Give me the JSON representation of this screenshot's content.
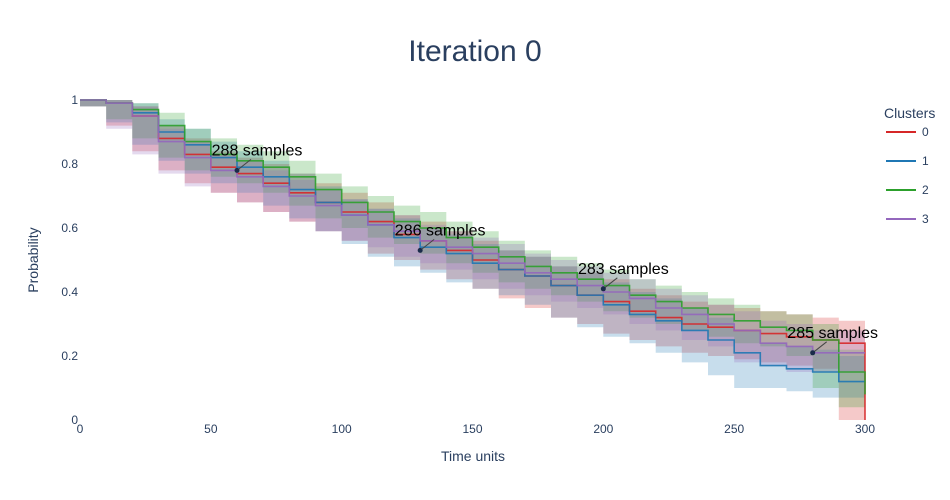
{
  "chart_data": {
    "type": "line",
    "title": "Iteration 0",
    "xlabel": "Time units",
    "ylabel": "Probability",
    "xlim": [
      0,
      300
    ],
    "ylim": [
      0,
      1
    ],
    "x_ticks": [
      0,
      50,
      100,
      150,
      200,
      250,
      300
    ],
    "y_ticks": [
      0,
      0.2,
      0.4,
      0.6,
      0.8,
      1
    ],
    "y_tick_labels": [
      "0",
      "0.2",
      "0.4",
      "0.6",
      "0.8",
      "1"
    ],
    "grid": false,
    "legend": {
      "title": "Clusters",
      "placement": "right"
    },
    "series": [
      {
        "name": "0",
        "color": "#d62728",
        "x": [
          0,
          10,
          20,
          30,
          40,
          50,
          60,
          70,
          80,
          90,
          100,
          110,
          120,
          130,
          140,
          150,
          160,
          170,
          180,
          190,
          200,
          210,
          220,
          230,
          240,
          250,
          260,
          270,
          280,
          290,
          300
        ],
        "y": [
          1.0,
          0.99,
          0.95,
          0.88,
          0.83,
          0.79,
          0.77,
          0.74,
          0.71,
          0.68,
          0.65,
          0.62,
          0.58,
          0.56,
          0.53,
          0.5,
          0.47,
          0.45,
          0.42,
          0.39,
          0.37,
          0.34,
          0.32,
          0.3,
          0.29,
          0.28,
          0.27,
          0.26,
          0.25,
          0.24,
          0.0
        ],
        "lower": [
          1.0,
          0.98,
          0.92,
          0.84,
          0.78,
          0.74,
          0.71,
          0.68,
          0.65,
          0.62,
          0.59,
          0.56,
          0.52,
          0.5,
          0.47,
          0.44,
          0.41,
          0.38,
          0.35,
          0.32,
          0.3,
          0.27,
          0.25,
          0.23,
          0.21,
          0.2,
          0.19,
          0.18,
          0.17,
          0.16,
          0.0
        ],
        "upper": [
          1.0,
          1.0,
          0.98,
          0.92,
          0.88,
          0.84,
          0.82,
          0.8,
          0.77,
          0.74,
          0.71,
          0.68,
          0.64,
          0.62,
          0.59,
          0.56,
          0.53,
          0.51,
          0.48,
          0.46,
          0.44,
          0.41,
          0.39,
          0.37,
          0.36,
          0.35,
          0.34,
          0.33,
          0.32,
          0.31,
          0.3
        ]
      },
      {
        "name": "1",
        "color": "#1f77b4",
        "x": [
          0,
          10,
          20,
          30,
          40,
          50,
          60,
          70,
          80,
          90,
          100,
          110,
          120,
          130,
          140,
          150,
          160,
          170,
          180,
          190,
          200,
          210,
          220,
          230,
          240,
          250,
          260,
          270,
          280,
          290,
          300
        ],
        "y": [
          1.0,
          0.99,
          0.96,
          0.9,
          0.86,
          0.82,
          0.79,
          0.76,
          0.72,
          0.68,
          0.64,
          0.61,
          0.57,
          0.54,
          0.52,
          0.49,
          0.47,
          0.45,
          0.42,
          0.39,
          0.36,
          0.33,
          0.31,
          0.28,
          0.25,
          0.21,
          0.17,
          0.16,
          0.15,
          0.12,
          0.12
        ],
        "lower": [
          1.0,
          0.98,
          0.93,
          0.86,
          0.81,
          0.77,
          0.74,
          0.71,
          0.67,
          0.63,
          0.59,
          0.55,
          0.51,
          0.48,
          0.46,
          0.43,
          0.41,
          0.39,
          0.36,
          0.32,
          0.29,
          0.26,
          0.24,
          0.21,
          0.18,
          0.14,
          0.1,
          0.1,
          0.09,
          0.07,
          0.07
        ],
        "upper": [
          1.0,
          1.0,
          0.99,
          0.94,
          0.91,
          0.87,
          0.84,
          0.81,
          0.77,
          0.73,
          0.69,
          0.66,
          0.63,
          0.6,
          0.58,
          0.55,
          0.53,
          0.51,
          0.48,
          0.46,
          0.43,
          0.4,
          0.38,
          0.35,
          0.32,
          0.28,
          0.24,
          0.23,
          0.22,
          0.2,
          0.2
        ]
      },
      {
        "name": "2",
        "color": "#2ca02c",
        "x": [
          0,
          10,
          20,
          30,
          40,
          50,
          60,
          70,
          80,
          90,
          100,
          110,
          120,
          130,
          140,
          150,
          160,
          170,
          180,
          190,
          200,
          210,
          220,
          230,
          240,
          250,
          260,
          270,
          280,
          290,
          300
        ],
        "y": [
          1.0,
          0.99,
          0.97,
          0.92,
          0.87,
          0.83,
          0.81,
          0.79,
          0.76,
          0.72,
          0.68,
          0.65,
          0.62,
          0.6,
          0.57,
          0.54,
          0.51,
          0.48,
          0.46,
          0.44,
          0.42,
          0.39,
          0.37,
          0.35,
          0.33,
          0.31,
          0.29,
          0.28,
          0.25,
          0.15,
          0.08
        ],
        "lower": [
          1.0,
          0.98,
          0.94,
          0.88,
          0.82,
          0.78,
          0.76,
          0.74,
          0.71,
          0.67,
          0.63,
          0.6,
          0.57,
          0.55,
          0.52,
          0.49,
          0.46,
          0.43,
          0.41,
          0.39,
          0.37,
          0.34,
          0.32,
          0.3,
          0.28,
          0.26,
          0.24,
          0.23,
          0.2,
          0.1,
          0.04
        ],
        "upper": [
          1.0,
          1.0,
          0.99,
          0.96,
          0.91,
          0.88,
          0.86,
          0.84,
          0.81,
          0.77,
          0.73,
          0.7,
          0.67,
          0.65,
          0.62,
          0.59,
          0.56,
          0.53,
          0.51,
          0.49,
          0.47,
          0.44,
          0.42,
          0.4,
          0.38,
          0.36,
          0.34,
          0.33,
          0.3,
          0.22,
          0.16
        ]
      },
      {
        "name": "3",
        "color": "#9467bd",
        "x": [
          0,
          10,
          20,
          30,
          40,
          50,
          60,
          70,
          80,
          90,
          100,
          110,
          120,
          130,
          140,
          150,
          160,
          170,
          180,
          190,
          200,
          210,
          220,
          230,
          240,
          250,
          260,
          270,
          280,
          290,
          300
        ],
        "y": [
          1.0,
          0.99,
          0.95,
          0.87,
          0.82,
          0.78,
          0.76,
          0.73,
          0.7,
          0.67,
          0.64,
          0.61,
          0.59,
          0.56,
          0.54,
          0.52,
          0.49,
          0.46,
          0.44,
          0.42,
          0.4,
          0.38,
          0.35,
          0.33,
          0.3,
          0.28,
          0.24,
          0.23,
          0.21,
          0.21,
          0.21
        ],
        "lower": [
          1.0,
          0.98,
          0.91,
          0.83,
          0.77,
          0.73,
          0.71,
          0.68,
          0.65,
          0.62,
          0.59,
          0.56,
          0.54,
          0.51,
          0.49,
          0.47,
          0.44,
          0.41,
          0.39,
          0.37,
          0.35,
          0.33,
          0.3,
          0.28,
          0.25,
          0.23,
          0.18,
          0.17,
          0.15,
          0.15,
          0.15
        ],
        "upper": [
          1.0,
          1.0,
          0.98,
          0.91,
          0.87,
          0.83,
          0.81,
          0.78,
          0.75,
          0.72,
          0.69,
          0.66,
          0.64,
          0.61,
          0.59,
          0.57,
          0.55,
          0.52,
          0.5,
          0.48,
          0.46,
          0.44,
          0.41,
          0.39,
          0.36,
          0.34,
          0.31,
          0.3,
          0.28,
          0.28,
          0.28
        ]
      }
    ],
    "annotations": [
      {
        "text": "288 samples",
        "x": 60,
        "y": 0.78,
        "color": "#d62728"
      },
      {
        "text": "286 samples",
        "x": 130,
        "y": 0.53,
        "color": "#1f77b4"
      },
      {
        "text": "283 samples",
        "x": 200,
        "y": 0.41,
        "color": "#2ca02c"
      },
      {
        "text": "285 samples",
        "x": 280,
        "y": 0.21,
        "color": "#9467bd"
      }
    ]
  }
}
